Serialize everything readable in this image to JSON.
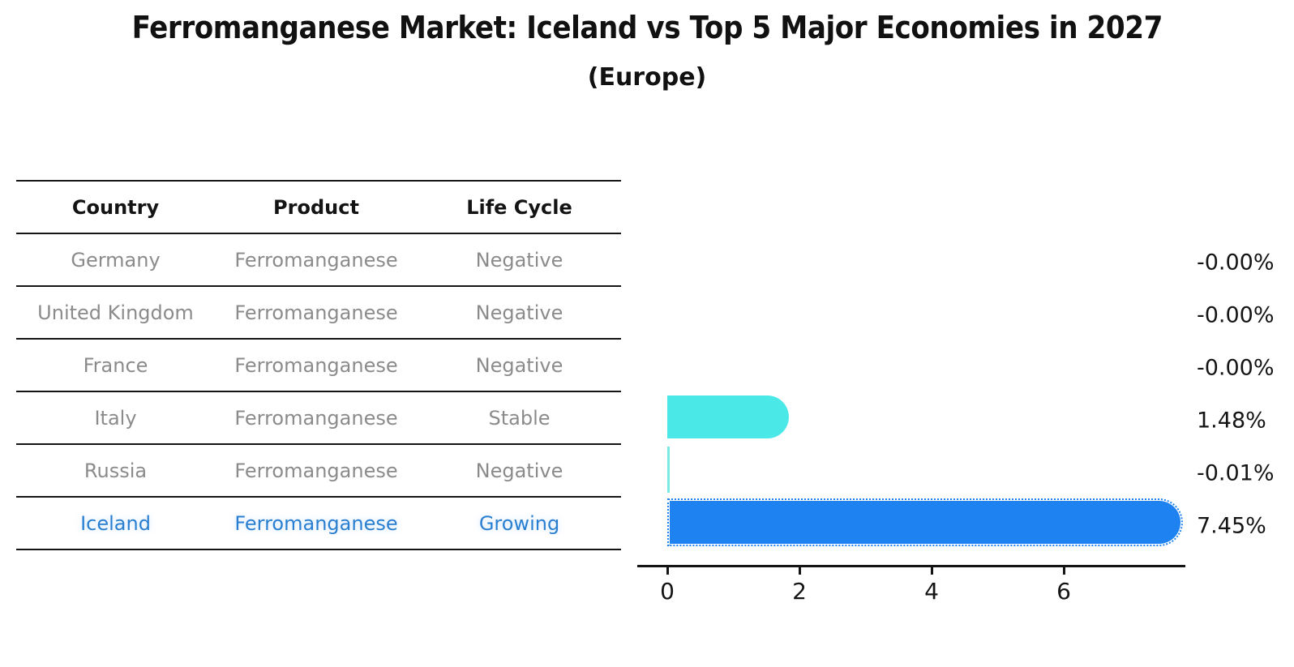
{
  "title": "Ferromanganese Market: Iceland vs Top 5 Major Economies in 2027",
  "subtitle": "(Europe)",
  "table": {
    "headers": [
      "Country",
      "Product",
      "Life Cycle"
    ],
    "rows": [
      {
        "country": "Germany",
        "product": "Ferromanganese",
        "life_cycle": "Negative",
        "highlight": false
      },
      {
        "country": "United Kingdom",
        "product": "Ferromanganese",
        "life_cycle": "Negative",
        "highlight": false
      },
      {
        "country": "France",
        "product": "Ferromanganese",
        "life_cycle": "Negative",
        "highlight": false
      },
      {
        "country": "Italy",
        "product": "Ferromanganese",
        "life_cycle": "Stable",
        "highlight": false
      },
      {
        "country": "Russia",
        "product": "Ferromanganese",
        "life_cycle": "Negative",
        "highlight": false
      },
      {
        "country": "Iceland",
        "product": "Ferromanganese",
        "life_cycle": "Growing",
        "highlight": true
      }
    ]
  },
  "chart_data": {
    "type": "bar",
    "orientation": "horizontal",
    "title": "Ferromanganese Market: Iceland vs Top 5 Major Economies in 2027",
    "subtitle": "(Europe)",
    "categories": [
      "Germany",
      "United Kingdom",
      "France",
      "Italy",
      "Russia",
      "Iceland"
    ],
    "values": [
      -0.0,
      -0.0,
      -0.0,
      1.48,
      -0.01,
      7.45
    ],
    "value_labels": [
      "-0.00%",
      "-0.00%",
      "-0.00%",
      "1.48%",
      "-0.01%",
      "7.45%"
    ],
    "units": "percent",
    "x_ticks": [
      0,
      2,
      4,
      6
    ],
    "xlim": [
      0,
      7.8
    ],
    "grid": false,
    "legend": "none",
    "highlight_category": "Iceland",
    "bar_colors": [
      "none",
      "none",
      "none",
      "#4BE8E8",
      "#7AE9E6",
      "#1E82F0"
    ]
  },
  "colors": {
    "background": "#ffffff",
    "header_text": "#141414",
    "row_text": "#8b8b8b",
    "highlight_text": "#2a7fd0",
    "axis": "#141414",
    "bar_cyan": "#4BE8E8",
    "bar_blue": "#1E82F0"
  }
}
